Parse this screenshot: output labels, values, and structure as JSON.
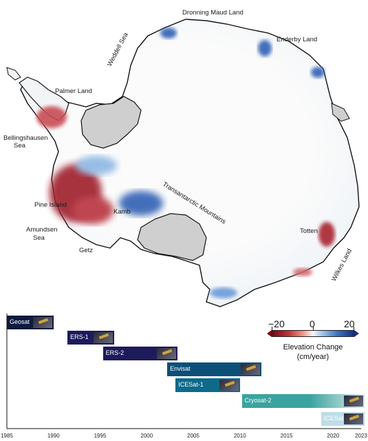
{
  "labels": {
    "dronning": "Dronning Maud Land",
    "weddell": "Weddell Sea",
    "enderby": "Enderby Land",
    "palmer": "Palmer Land",
    "bellingshausen1": "Bellingshausen",
    "bellingshausen2": "Sea",
    "transantarctic": "Transantarctic Mountains",
    "pine": "Pine Island",
    "kamb": "Kamb",
    "amundsen1": "Amundsen",
    "amundsen2": "Sea",
    "getz": "Getz",
    "totten": "Totten",
    "wilkes": "Wilkes Land"
  },
  "legend": {
    "ticks": [
      "−20",
      "0",
      "20"
    ],
    "title1": "Elevation Change",
    "title2": "(cm/year)",
    "colors": {
      "loss": "#b02a35",
      "gain": "#2f5fb3",
      "neutral": "#f7f7f7",
      "shelf": "#cfcfcf"
    }
  },
  "timeline": {
    "years": [
      "1985",
      "1990",
      "1995",
      "2000",
      "2005",
      "2010",
      "2015",
      "2020",
      "2023"
    ],
    "missions": [
      {
        "name": "Geosat",
        "start": 1985,
        "end": 1990,
        "color": "#0e1a3e"
      },
      {
        "name": "ERS-1",
        "start": 1991.5,
        "end": 1996.5,
        "color": "#1d1b5c"
      },
      {
        "name": "ERS-2",
        "start": 1995.3,
        "end": 2003.3,
        "color": "#1d1b5c"
      },
      {
        "name": "Envisat",
        "start": 2002.2,
        "end": 2012.3,
        "color": "#0d4f78"
      },
      {
        "name": "ICESat-1",
        "start": 2003.1,
        "end": 2010,
        "color": "#0d6a8a"
      },
      {
        "name": "Cryosat-2",
        "start": 2010.2,
        "end": 2023.5,
        "color": "#3aa3a0"
      },
      {
        "name": "ICESat-2",
        "start": 2018.7,
        "end": 2023.5,
        "color": "#bcdde8"
      }
    ]
  }
}
